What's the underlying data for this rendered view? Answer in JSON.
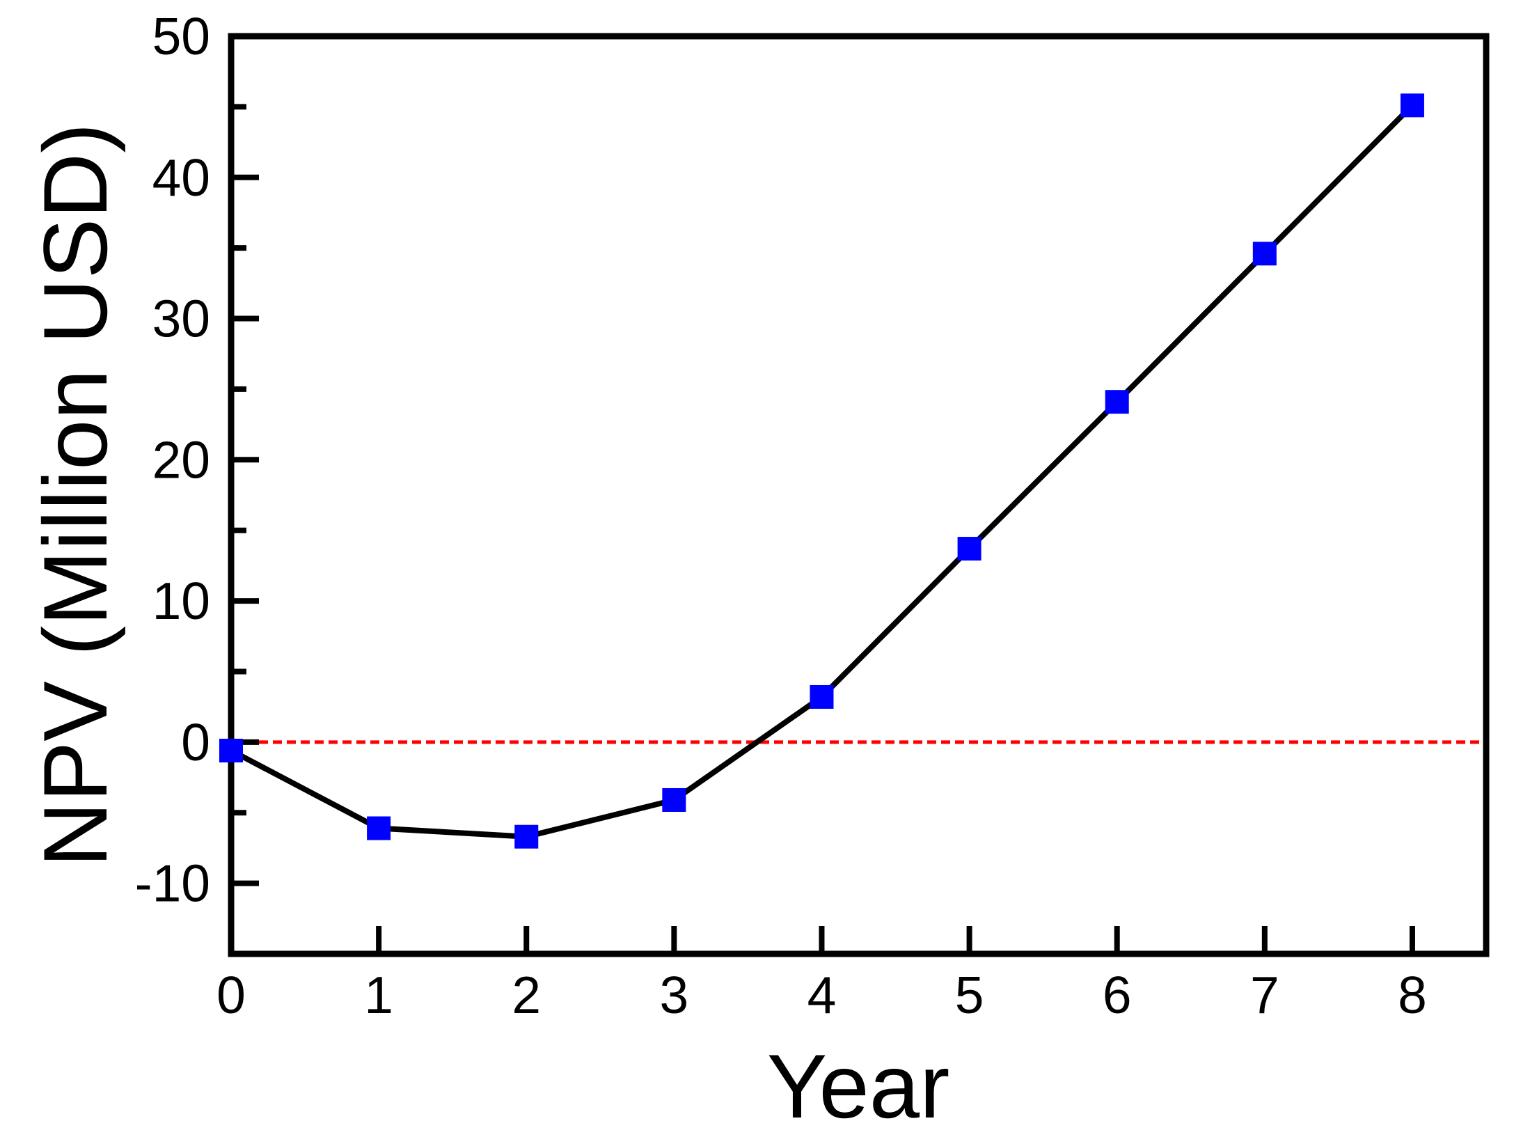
{
  "figure": {
    "background": "#ffffff"
  },
  "chart_data": {
    "type": "line",
    "title": "",
    "xlabel": "Year",
    "ylabel": "NPV (Million USD)",
    "x": [
      0,
      1,
      2,
      3,
      4,
      5,
      6,
      7,
      8
    ],
    "series": [
      {
        "name": "NPV",
        "values": [
          -0.6,
          -6.1,
          -6.7,
          -4.1,
          3.2,
          13.7,
          24.1,
          34.6,
          45.1
        ]
      }
    ],
    "xlim": [
      0,
      8.5
    ],
    "ylim": [
      -15,
      50
    ],
    "x_ticks": [
      0,
      1,
      2,
      3,
      4,
      5,
      6,
      7,
      8
    ],
    "y_major_ticks": [
      -10,
      0,
      10,
      20,
      30,
      40,
      50
    ],
    "y_minor_ticks": [
      -5,
      5,
      15,
      25,
      35,
      45
    ],
    "grid": false,
    "legend": null,
    "line_color": "#000000",
    "marker_shape": "square",
    "marker_color": "#0000ff",
    "marker_size_px": 34,
    "zero_line": {
      "y": 0,
      "color": "#ff0000",
      "style": "dashed"
    },
    "frame_color": "#000000"
  }
}
